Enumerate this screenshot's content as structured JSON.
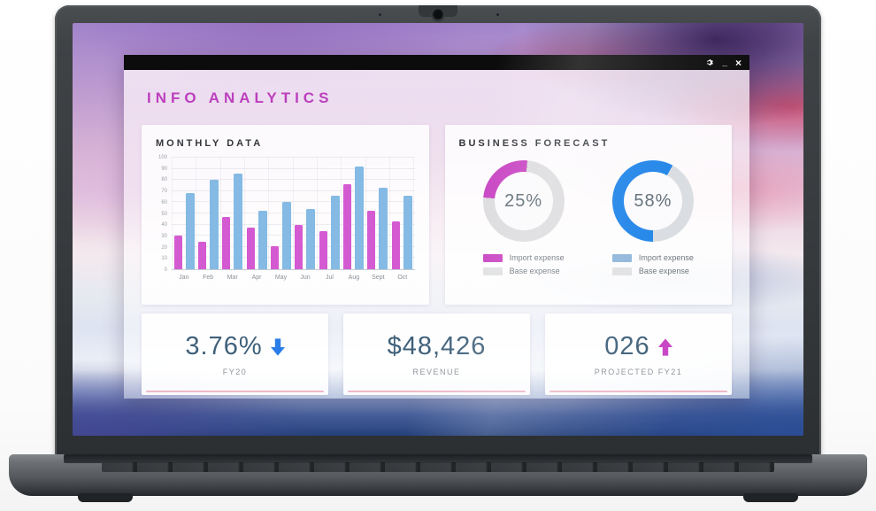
{
  "window": {
    "title": "INFO ANALYTICS",
    "controls": {
      "minimize_label": "_",
      "close_label": "×"
    }
  },
  "monthly_panel": {
    "title": "MONTHLY DATA"
  },
  "forecast_panel": {
    "title": "BUSINESS FORECAST",
    "donuts": [
      {
        "center_label": "25%",
        "value": 25,
        "start_deg": 275,
        "ring_color": "#c843c3",
        "track_color": "#dcdcdf",
        "legend": [
          {
            "label": "Import expense",
            "swatch": "#c843c3"
          },
          {
            "label": "Base expense",
            "swatch": "#e0e1e3"
          }
        ]
      },
      {
        "center_label": "58%",
        "value": 58,
        "start_deg": 180,
        "ring_color": "#1d83e8",
        "track_color": "#d9dce0",
        "legend": [
          {
            "label": "Import expense",
            "swatch": "#8fb6da"
          },
          {
            "label": "Base expense",
            "swatch": "#e0e1e3"
          }
        ]
      }
    ]
  },
  "stat_cards": [
    {
      "value": "3.76%",
      "label": "FY20",
      "trend": "down",
      "arrow_color": "#2a7de8"
    },
    {
      "value": "$48,426",
      "label": "REVENUE",
      "trend": "none",
      "arrow_color": ""
    },
    {
      "value": "026",
      "label": "PROJECTED FY21",
      "trend": "up",
      "arrow_color": "#c843c3"
    }
  ],
  "chart_data": [
    {
      "type": "bar",
      "title": "MONTHLY DATA",
      "categories": [
        "Jan",
        "Feb",
        "Mar",
        "Apr",
        "May",
        "Jun",
        "Jul",
        "Aug",
        "Sept",
        "Oct"
      ],
      "series": [
        {
          "name": "pink",
          "color": "#d45ad2",
          "values": [
            30,
            25,
            47,
            37,
            21,
            40,
            34,
            76,
            52,
            43
          ]
        },
        {
          "name": "blue",
          "color": "#84bae4",
          "values": [
            68,
            80,
            86,
            52,
            60,
            54,
            66,
            92,
            73,
            66
          ]
        }
      ],
      "ylim": [
        0,
        100
      ],
      "yticks": [
        0,
        10,
        20,
        30,
        40,
        50,
        60,
        70,
        80,
        90,
        100
      ],
      "grid": true,
      "legend_position": "none"
    },
    {
      "type": "pie",
      "title": "BUSINESS FORECAST — import vs base (left donut)",
      "labels": [
        "Import expense",
        "Base expense"
      ],
      "values": [
        25,
        75
      ],
      "colors": [
        "#c843c3",
        "#dcdcdf"
      ],
      "center_label": "25%",
      "legend_position": "bottom"
    },
    {
      "type": "pie",
      "title": "BUSINESS FORECAST — import vs base (right donut)",
      "labels": [
        "Import expense",
        "Base expense"
      ],
      "values": [
        58,
        42
      ],
      "colors": [
        "#1d83e8",
        "#d9dce0"
      ],
      "center_label": "58%",
      "legend_position": "bottom"
    }
  ]
}
